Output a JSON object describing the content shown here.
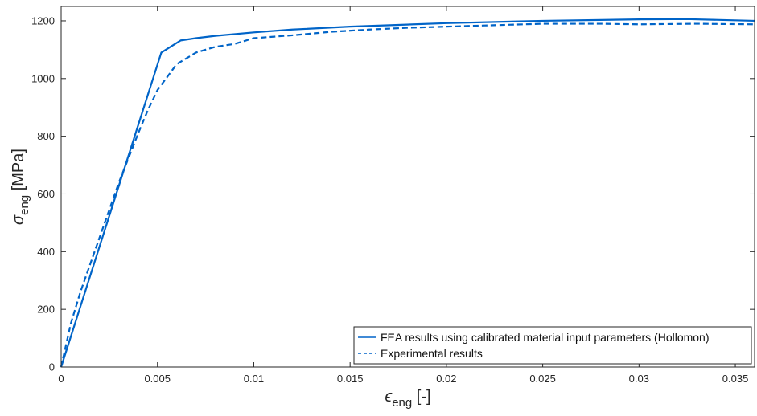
{
  "chart_data": {
    "type": "line",
    "title": "",
    "xlabel": {
      "symbol": "ϵ",
      "subscript": "eng",
      "unit": "[-]"
    },
    "ylabel": {
      "symbol": "σ",
      "subscript": "eng",
      "unit": "[MPa]"
    },
    "xlim": [
      0,
      0.036
    ],
    "ylim": [
      0,
      1250
    ],
    "xticks": [
      0,
      0.005,
      0.01,
      0.015,
      0.02,
      0.025,
      0.03,
      0.035
    ],
    "xtick_labels": [
      "0",
      "0.005",
      "0.01",
      "0.015",
      "0.02",
      "0.025",
      "0.03",
      "0.035"
    ],
    "yticks": [
      0,
      200,
      400,
      600,
      800,
      1000,
      1200
    ],
    "ytick_labels": [
      "0",
      "200",
      "400",
      "600",
      "800",
      "1000",
      "1200"
    ],
    "grid": false,
    "legend_position": "bottom-right",
    "line_color": "#0064C8",
    "series": [
      {
        "name": "FEA results using calibrated material input parameters (Hollomon)",
        "style": "solid",
        "x": [
          0,
          0.0052,
          0.0062,
          0.007,
          0.008,
          0.01,
          0.012,
          0.015,
          0.02,
          0.025,
          0.03,
          0.0325,
          0.036
        ],
        "y": [
          0,
          1090,
          1132,
          1140,
          1148,
          1160,
          1170,
          1180,
          1192,
          1200,
          1205,
          1206,
          1200
        ]
      },
      {
        "name": "Experimental results",
        "style": "dashed",
        "x": [
          0,
          0.0005,
          0.001,
          0.002,
          0.003,
          0.004,
          0.0045,
          0.005,
          0.006,
          0.007,
          0.008,
          0.009,
          0.01,
          0.012,
          0.014,
          0.016,
          0.018,
          0.02,
          0.022,
          0.025,
          0.028,
          0.03,
          0.033,
          0.036
        ],
        "y": [
          0,
          150,
          260,
          450,
          640,
          810,
          890,
          960,
          1050,
          1090,
          1110,
          1120,
          1140,
          1150,
          1162,
          1170,
          1176,
          1180,
          1184,
          1190,
          1190,
          1188,
          1190,
          1188
        ]
      }
    ]
  }
}
